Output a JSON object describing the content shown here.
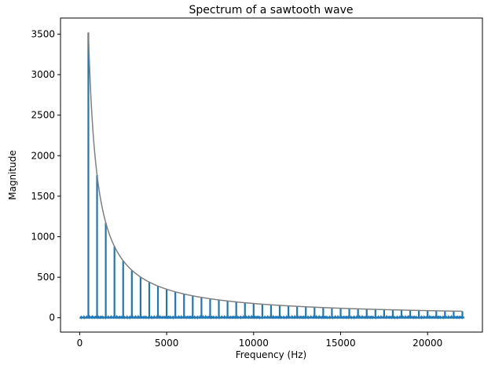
{
  "chart_data": {
    "type": "line",
    "title": "Spectrum of a sawtooth wave",
    "xlabel": "Frequency (Hz)",
    "ylabel": "Magnitude",
    "xlim": [
      -1102,
      23152
    ],
    "ylim": [
      -177,
      3698
    ],
    "xticks": [
      0,
      5000,
      10000,
      15000,
      20000
    ],
    "yticks": [
      0,
      500,
      1000,
      1500,
      2000,
      2500,
      3000,
      3500
    ],
    "grid": false,
    "series": [
      {
        "type": "stem",
        "color": "#1f77b4",
        "fundamental_hz": 500,
        "x": [
          500,
          1000,
          1500,
          2000,
          2500,
          3000,
          3500,
          4000,
          4500,
          5000,
          5500,
          6000,
          6500,
          7000,
          7500,
          8000,
          8500,
          9000,
          9500,
          10000,
          10500,
          11000,
          11500,
          12000,
          12500,
          13000,
          13500,
          14000,
          14500,
          15000,
          15500,
          16000,
          16500,
          17000,
          17500,
          18000,
          18500,
          19000,
          19500,
          20000,
          20500,
          21000,
          21500,
          22000
        ],
        "y": [
          3520,
          1760,
          1173,
          880,
          704,
          587,
          503,
          440,
          391,
          352,
          320,
          293,
          271,
          251,
          235,
          220,
          207,
          196,
          185,
          176,
          168,
          160,
          153,
          147,
          141,
          135,
          130,
          126,
          121,
          117,
          114,
          110,
          107,
          104,
          101,
          98,
          95,
          93,
          90,
          88,
          86,
          84,
          82,
          80
        ],
        "baseline_noise": 25
      },
      {
        "type": "line",
        "color": "#808080",
        "formula": "1760000 / f",
        "x_range": [
          500,
          22000
        ]
      }
    ]
  }
}
